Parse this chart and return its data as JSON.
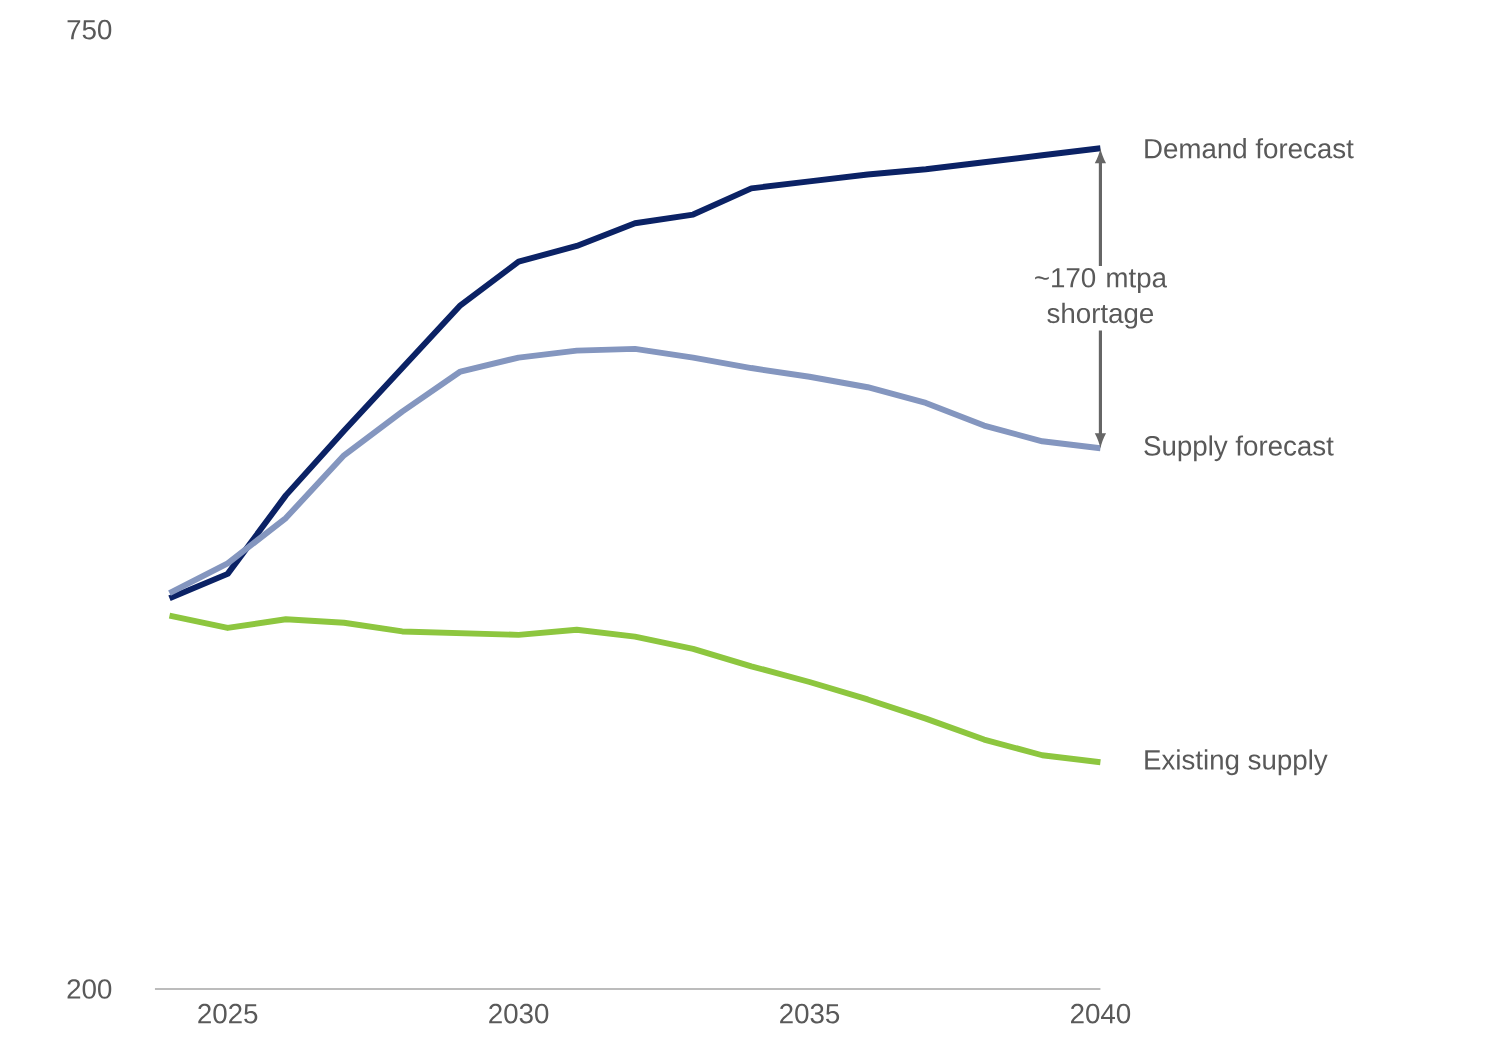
{
  "chart_data": {
    "type": "line",
    "x": [
      2024,
      2025,
      2026,
      2027,
      2028,
      2029,
      2030,
      2031,
      2032,
      2033,
      2034,
      2035,
      2036,
      2037,
      2038,
      2039,
      2040
    ],
    "series": [
      {
        "name": "Demand forecast",
        "color": "#0b2265",
        "values": [
          424,
          438,
          483,
          520,
          556,
          592,
          617,
          626,
          639,
          644,
          659,
          663,
          667,
          670,
          674,
          678,
          682
        ]
      },
      {
        "name": "Supply forecast",
        "color": "#8496bf",
        "values": [
          427,
          444,
          470,
          506,
          531,
          554,
          562,
          566,
          567,
          562,
          556,
          551,
          545,
          536,
          523,
          514,
          510
        ]
      },
      {
        "name": "Existing supply",
        "color": "#8dc63f",
        "values": [
          414,
          407,
          412,
          410,
          405,
          404,
          403,
          406,
          402,
          395,
          385,
          376,
          366,
          355,
          343,
          334,
          330
        ]
      }
    ],
    "xlim": [
      2023.75,
      2040
    ],
    "xticks": [
      2025,
      2030,
      2035,
      2040
    ],
    "ylim": [
      200,
      750
    ],
    "yticks": [
      200,
      750
    ],
    "annotations": [
      "~170 mtpa shortage"
    ],
    "line_style": "solid",
    "marker": "none",
    "grid": false
  }
}
